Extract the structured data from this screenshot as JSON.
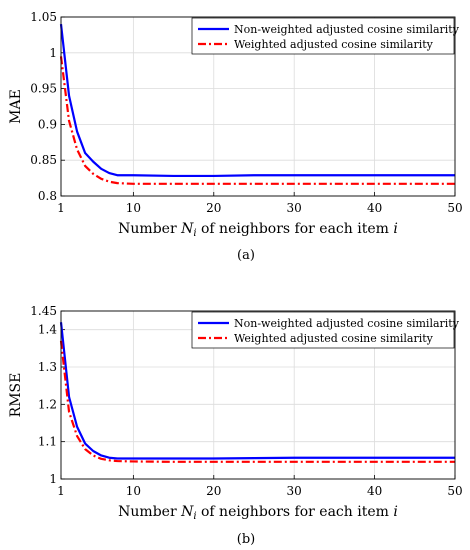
{
  "chart_data": [
    {
      "type": "line",
      "caption": "(a)",
      "ylabel": "MAE",
      "xlabel": {
        "pre": "Number ",
        "var": "N",
        "sub": "i",
        "post": " of neighbors for each item ",
        "tail": "i"
      },
      "xlim": [
        1,
        50
      ],
      "ylim": [
        0.8,
        1.05
      ],
      "xticks": [
        1,
        10,
        20,
        30,
        40,
        50
      ],
      "yticks": [
        0.8,
        0.85,
        0.9,
        0.95,
        1,
        1.05
      ],
      "ytick_labels": [
        "0.8",
        "0.85",
        "0.9",
        "0.95",
        "1",
        "1.05"
      ],
      "grid": true,
      "legend_position": "top-right",
      "x": [
        1,
        2,
        3,
        4,
        5,
        6,
        7,
        8,
        10,
        15,
        20,
        25,
        30,
        35,
        40,
        45,
        50
      ],
      "series": [
        {
          "name": "Non-weighted adjusted cosine similarity",
          "color": "#0000ff",
          "style": "solid",
          "values": [
            1.04,
            0.94,
            0.89,
            0.86,
            0.848,
            0.838,
            0.832,
            0.829,
            0.829,
            0.828,
            0.828,
            0.829,
            0.829,
            0.829,
            0.829,
            0.829,
            0.829
          ]
        },
        {
          "name": "Weighted adjusted cosine similarity",
          "color": "#ff0000",
          "style": "dashdot",
          "values": [
            0.995,
            0.905,
            0.865,
            0.842,
            0.831,
            0.824,
            0.82,
            0.818,
            0.817,
            0.817,
            0.817,
            0.817,
            0.817,
            0.817,
            0.817,
            0.817,
            0.817
          ]
        }
      ]
    },
    {
      "type": "line",
      "caption": "(b)",
      "ylabel": "RMSE",
      "xlabel": {
        "pre": "Number ",
        "var": "N",
        "sub": "i",
        "post": " of neighbors for each item ",
        "tail": "i"
      },
      "xlim": [
        1,
        50
      ],
      "ylim": [
        1.0,
        1.45
      ],
      "xticks": [
        1,
        10,
        20,
        30,
        40,
        50
      ],
      "yticks": [
        1,
        1.1,
        1.2,
        1.3,
        1.4,
        1.45
      ],
      "ytick_labels": [
        "1",
        "1.1",
        "1.2",
        "1.3",
        "1.4",
        "1.45"
      ],
      "grid": true,
      "legend_position": "top-right",
      "x": [
        1,
        2,
        3,
        4,
        5,
        6,
        7,
        8,
        10,
        15,
        20,
        25,
        30,
        35,
        40,
        45,
        50
      ],
      "series": [
        {
          "name": "Non-weighted adjusted cosine similarity",
          "color": "#0000ff",
          "style": "solid",
          "values": [
            1.42,
            1.22,
            1.14,
            1.095,
            1.075,
            1.063,
            1.057,
            1.055,
            1.055,
            1.055,
            1.055,
            1.056,
            1.057,
            1.057,
            1.057,
            1.057,
            1.057
          ]
        },
        {
          "name": "Weighted adjusted cosine similarity",
          "color": "#ff0000",
          "style": "dashdot",
          "values": [
            1.37,
            1.18,
            1.115,
            1.08,
            1.063,
            1.054,
            1.05,
            1.048,
            1.047,
            1.046,
            1.046,
            1.046,
            1.046,
            1.046,
            1.046,
            1.046,
            1.046
          ]
        }
      ]
    }
  ]
}
